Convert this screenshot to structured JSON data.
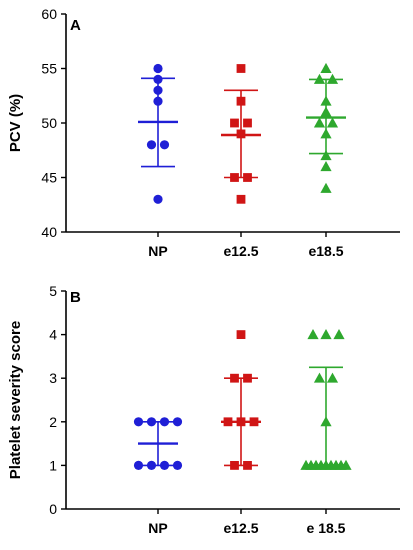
{
  "chart_data": [
    {
      "type": "scatter",
      "panel_label": "A",
      "ylabel": "PCV (%)",
      "ylim": [
        40,
        60
      ],
      "yticks": [
        40,
        45,
        50,
        55,
        60
      ],
      "categories": [
        "NP",
        "e12.5",
        "e18.5"
      ],
      "series": [
        {
          "category": "NP",
          "color": "#1f1fd6",
          "marker": "circle",
          "points": [
            55,
            54,
            53,
            52,
            48,
            48,
            43
          ],
          "mean": 50.1,
          "error": [
            46.0,
            54.1
          ]
        },
        {
          "category": "e12.5",
          "color": "#d01515",
          "marker": "square",
          "points": [
            55,
            52,
            50,
            50,
            49,
            45,
            45,
            43
          ],
          "mean": 48.9,
          "error": [
            45.0,
            53.0
          ]
        },
        {
          "category": "e18.5",
          "color": "#2ea82e",
          "marker": "triangle",
          "points": [
            55,
            54,
            54,
            52,
            51,
            50,
            50,
            49,
            47,
            46,
            44
          ],
          "mean": 50.5,
          "error": [
            47.2,
            54.0
          ]
        }
      ]
    },
    {
      "type": "scatter",
      "panel_label": "B",
      "ylabel": "Platelet severity score",
      "ylim": [
        0,
        5
      ],
      "yticks": [
        0,
        1,
        2,
        3,
        4,
        5
      ],
      "categories": [
        "NP",
        "e12.5",
        "e 18.5"
      ],
      "series": [
        {
          "category": "NP",
          "color": "#1f1fd6",
          "marker": "circle",
          "points": [
            2,
            2,
            2,
            2,
            1,
            1,
            1,
            1
          ],
          "mean": 1.5,
          "error": [
            1.0,
            2.0
          ]
        },
        {
          "category": "e12.5",
          "color": "#d01515",
          "marker": "square",
          "points": [
            4,
            3,
            3,
            2,
            2,
            2,
            1,
            1
          ],
          "mean": 2.0,
          "error": [
            1.0,
            3.0
          ]
        },
        {
          "category": "e 18.5",
          "color": "#2ea82e",
          "marker": "triangle",
          "points": [
            4,
            4,
            4,
            3,
            3,
            2,
            1,
            1,
            1,
            1,
            1,
            1,
            1,
            1,
            1
          ],
          "mean": 1.0,
          "error": [
            1.0,
            3.25
          ]
        }
      ]
    }
  ]
}
